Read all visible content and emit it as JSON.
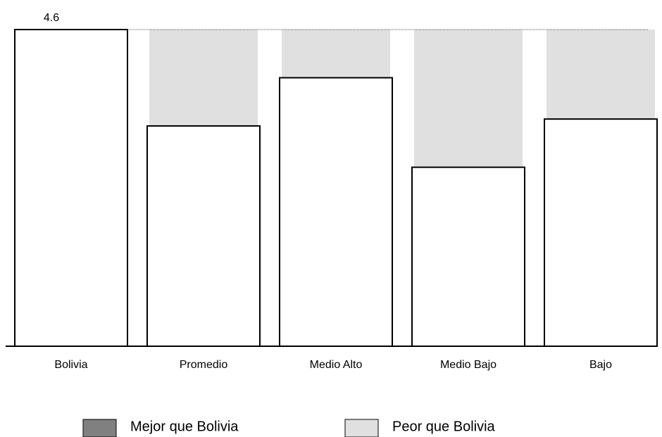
{
  "chart_data": {
    "type": "bar",
    "categories": [
      "Bolivia",
      "Promedio",
      "Medio Alto",
      "Medio Bajo",
      "Bajo"
    ],
    "values": [
      4.6,
      3.2,
      3.9,
      2.6,
      3.3
    ],
    "value_labels": [
      "4.6",
      null,
      null,
      null,
      null
    ],
    "color": "#ffffff",
    "ylim": [
      0,
      4.6
    ],
    "legend": [
      {
        "name": "Mejor que Bolivia",
        "color": "#808080"
      },
      {
        "name": "Peor que Bolivia",
        "color": "#e0e0e0"
      }
    ]
  }
}
